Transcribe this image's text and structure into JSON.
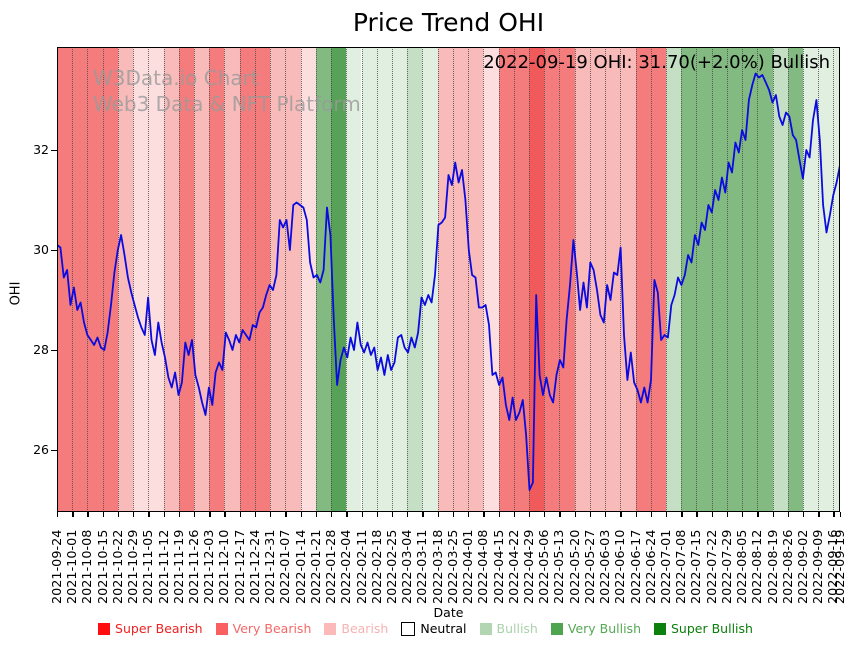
{
  "figure_title": "Price Trend OHI",
  "chart_data": {
    "type": "line",
    "title": "Price Trend OHI",
    "xlabel": "Date",
    "ylabel": "OHI",
    "ylim": [
      24.76,
      34.06
    ],
    "yticks": [
      26,
      28,
      30,
      32
    ],
    "grid": "weekly dotted vertical gridlines",
    "legend_position": "bottom",
    "annotation": "2022-09-19 OHI: 31.70(+2.0%) Bullish",
    "watermark": [
      "W3Data.io Chart",
      "Web3 Data & NFT Platform"
    ],
    "x_tick_labels": [
      "2021-09-24",
      "2021-10-01",
      "2021-10-08",
      "2021-10-15",
      "2021-10-22",
      "2021-10-29",
      "2021-11-05",
      "2021-11-12",
      "2021-11-19",
      "2021-11-26",
      "2021-12-03",
      "2021-12-10",
      "2021-12-17",
      "2021-12-24",
      "2021-12-31",
      "2022-01-07",
      "2022-01-14",
      "2022-01-21",
      "2022-01-28",
      "2022-02-04",
      "2022-02-11",
      "2022-02-18",
      "2022-02-25",
      "2022-03-04",
      "2022-03-11",
      "2022-03-18",
      "2022-03-25",
      "2022-04-01",
      "2022-04-08",
      "2022-04-15",
      "2022-04-22",
      "2022-04-29",
      "2022-05-06",
      "2022-05-13",
      "2022-05-20",
      "2022-05-27",
      "2022-06-03",
      "2022-06-10",
      "2022-06-17",
      "2022-06-24",
      "2022-07-01",
      "2022-07-08",
      "2022-07-15",
      "2022-07-22",
      "2022-07-29",
      "2022-08-05",
      "2022-08-12",
      "2022-08-19",
      "2022-08-26",
      "2022-09-02",
      "2022-09-09",
      "2022-09-16",
      "2022-09-19"
    ],
    "line_color": "#0b0be0",
    "series": [
      {
        "name": "OHI",
        "values": [
          30.1,
          30.05,
          29.45,
          29.6,
          28.9,
          29.25,
          28.8,
          28.95,
          28.55,
          28.3,
          28.2,
          28.1,
          28.25,
          28.05,
          28.0,
          28.35,
          28.9,
          29.55,
          30.0,
          30.3,
          29.9,
          29.45,
          29.15,
          28.9,
          28.65,
          28.45,
          28.3,
          29.05,
          28.2,
          27.9,
          28.55,
          28.15,
          27.85,
          27.45,
          27.25,
          27.55,
          27.1,
          27.35,
          28.15,
          27.9,
          28.2,
          27.5,
          27.25,
          26.95,
          26.7,
          27.25,
          26.9,
          27.55,
          27.75,
          27.6,
          28.35,
          28.2,
          28.0,
          28.3,
          28.15,
          28.4,
          28.3,
          28.2,
          28.5,
          28.45,
          28.75,
          28.85,
          29.1,
          29.3,
          29.2,
          29.5,
          30.6,
          30.45,
          30.6,
          30.0,
          30.9,
          30.95,
          30.9,
          30.85,
          30.6,
          29.75,
          29.45,
          29.5,
          29.35,
          29.6,
          30.85,
          30.3,
          28.6,
          27.3,
          27.8,
          28.05,
          27.85,
          28.25,
          28.0,
          28.55,
          28.1,
          27.95,
          28.15,
          27.9,
          28.05,
          27.6,
          27.85,
          27.5,
          27.9,
          27.6,
          27.75,
          28.25,
          28.3,
          28.05,
          27.95,
          28.25,
          28.05,
          28.35,
          29.05,
          28.9,
          29.1,
          28.95,
          29.5,
          30.5,
          30.55,
          30.65,
          31.5,
          31.3,
          31.75,
          31.35,
          31.6,
          31.0,
          30.0,
          29.5,
          29.45,
          28.85,
          28.85,
          28.9,
          28.5,
          27.5,
          27.55,
          27.3,
          27.45,
          26.9,
          26.6,
          27.05,
          26.6,
          26.75,
          27.0,
          26.3,
          25.2,
          25.35,
          29.1,
          27.5,
          27.1,
          27.45,
          27.1,
          26.95,
          27.5,
          27.8,
          27.65,
          28.6,
          29.3,
          30.2,
          29.55,
          28.8,
          29.35,
          28.85,
          29.75,
          29.6,
          29.2,
          28.7,
          28.55,
          29.3,
          29.0,
          29.55,
          29.5,
          30.05,
          28.3,
          27.4,
          27.95,
          27.35,
          27.2,
          26.95,
          27.25,
          26.95,
          27.4,
          29.4,
          29.15,
          28.2,
          28.3,
          28.25,
          28.9,
          29.1,
          29.45,
          29.3,
          29.5,
          29.9,
          29.75,
          30.3,
          30.1,
          30.55,
          30.4,
          30.9,
          30.75,
          31.2,
          31.0,
          31.45,
          31.15,
          31.75,
          31.55,
          32.15,
          31.95,
          32.4,
          32.2,
          33.0,
          33.3,
          33.53,
          33.45,
          33.5,
          33.35,
          33.2,
          32.95,
          33.1,
          32.67,
          32.5,
          32.75,
          32.67,
          32.3,
          32.2,
          31.8,
          31.43,
          32.0,
          31.85,
          32.6,
          33.0,
          32.2,
          30.9,
          30.35,
          30.7,
          31.1,
          31.35,
          31.7
        ]
      }
    ],
    "band_colors": {
      "sb": "#f05a5a",
      "vb": "#f47c7c",
      "b": "#f9baba",
      "bl": "#fcdede",
      "n": "#ffffff",
      "bul": "#e1efe1",
      "bu": "#c5dfc5",
      "vbu": "#82ba82",
      "sbu": "#58a158"
    },
    "band_sentiments": [
      "vb",
      "vb",
      "vb",
      "vb",
      "b",
      "bl",
      "bl",
      "b",
      "vb",
      "b",
      "vb",
      "b",
      "vb",
      "vb",
      "b",
      "b",
      "bl",
      "vbu",
      "sbu",
      "bul",
      "bul",
      "bul",
      "bul",
      "bu",
      "bul",
      "b",
      "b",
      "b",
      "bl",
      "vb",
      "vb",
      "sb",
      "vb",
      "vb",
      "b",
      "b",
      "b",
      "b",
      "vb",
      "vb",
      "bu",
      "vbu",
      "vbu",
      "vbu",
      "vbu",
      "vbu",
      "vbu",
      "bu",
      "vbu",
      "bul",
      "bul",
      "bul"
    ],
    "legend": [
      {
        "label": "Super Bearish",
        "swatch": "#fe0e0e",
        "text": "#ee2222",
        "bordered": false
      },
      {
        "label": "Very Bearish",
        "swatch": "#fb6060",
        "text": "#f56868",
        "bordered": false
      },
      {
        "label": "Bearish",
        "swatch": "#fbb9b9",
        "text": "#f7b2b2",
        "bordered": false
      },
      {
        "label": "Neutral",
        "swatch": "#ffffff",
        "text": "#000000",
        "bordered": true
      },
      {
        "label": "Bullish",
        "swatch": "#b2d6b2",
        "text": "#abd1ab",
        "bordered": false
      },
      {
        "label": "Very Bullish",
        "swatch": "#4fa44f",
        "text": "#55a855",
        "bordered": false
      },
      {
        "label": "Super Bullish",
        "swatch": "#0d810d",
        "text": "#0a7d0a",
        "bordered": false
      }
    ]
  }
}
